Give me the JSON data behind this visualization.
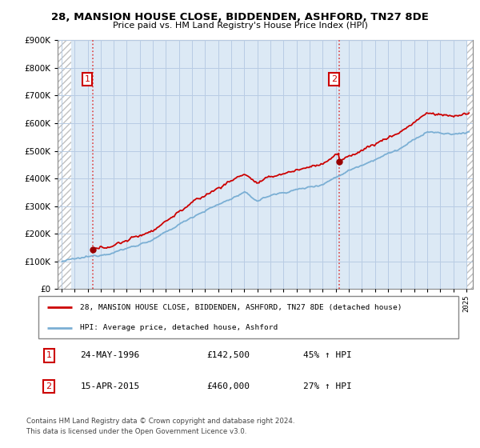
{
  "title": "28, MANSION HOUSE CLOSE, BIDDENDEN, ASHFORD, TN27 8DE",
  "subtitle": "Price paid vs. HM Land Registry's House Price Index (HPI)",
  "sale1_label": "24-MAY-1996",
  "sale1_price": 142500,
  "sale1_price_str": "£142,500",
  "sale1_hpi_text": "45% ↑ HPI",
  "sale2_label": "15-APR-2015",
  "sale2_price": 460000,
  "sale2_price_str": "£460,000",
  "sale2_hpi_text": "27% ↑ HPI",
  "legend_line1": "28, MANSION HOUSE CLOSE, BIDDENDEN, ASHFORD, TN27 8DE (detached house)",
  "legend_line2": "HPI: Average price, detached house, Ashford",
  "footer": "Contains HM Land Registry data © Crown copyright and database right 2024.\nThis data is licensed under the Open Government Licence v3.0.",
  "hpi_color": "#7bafd4",
  "price_color": "#cc0000",
  "sale_dot_color": "#990000",
  "vline_color": "#dd4444",
  "ylim_min": 0,
  "ylim_max": 900000,
  "yticks": [
    0,
    100000,
    200000,
    300000,
    400000,
    500000,
    600000,
    700000,
    800000,
    900000
  ],
  "xlim_start": 1993.7,
  "xlim_end": 2025.5,
  "t_sale1": 1996.38,
  "t_sale2": 2015.29,
  "plot_bg": "#dce9f5",
  "grid_color": "#b8cce4",
  "hatch_color": "#c0c0c0"
}
